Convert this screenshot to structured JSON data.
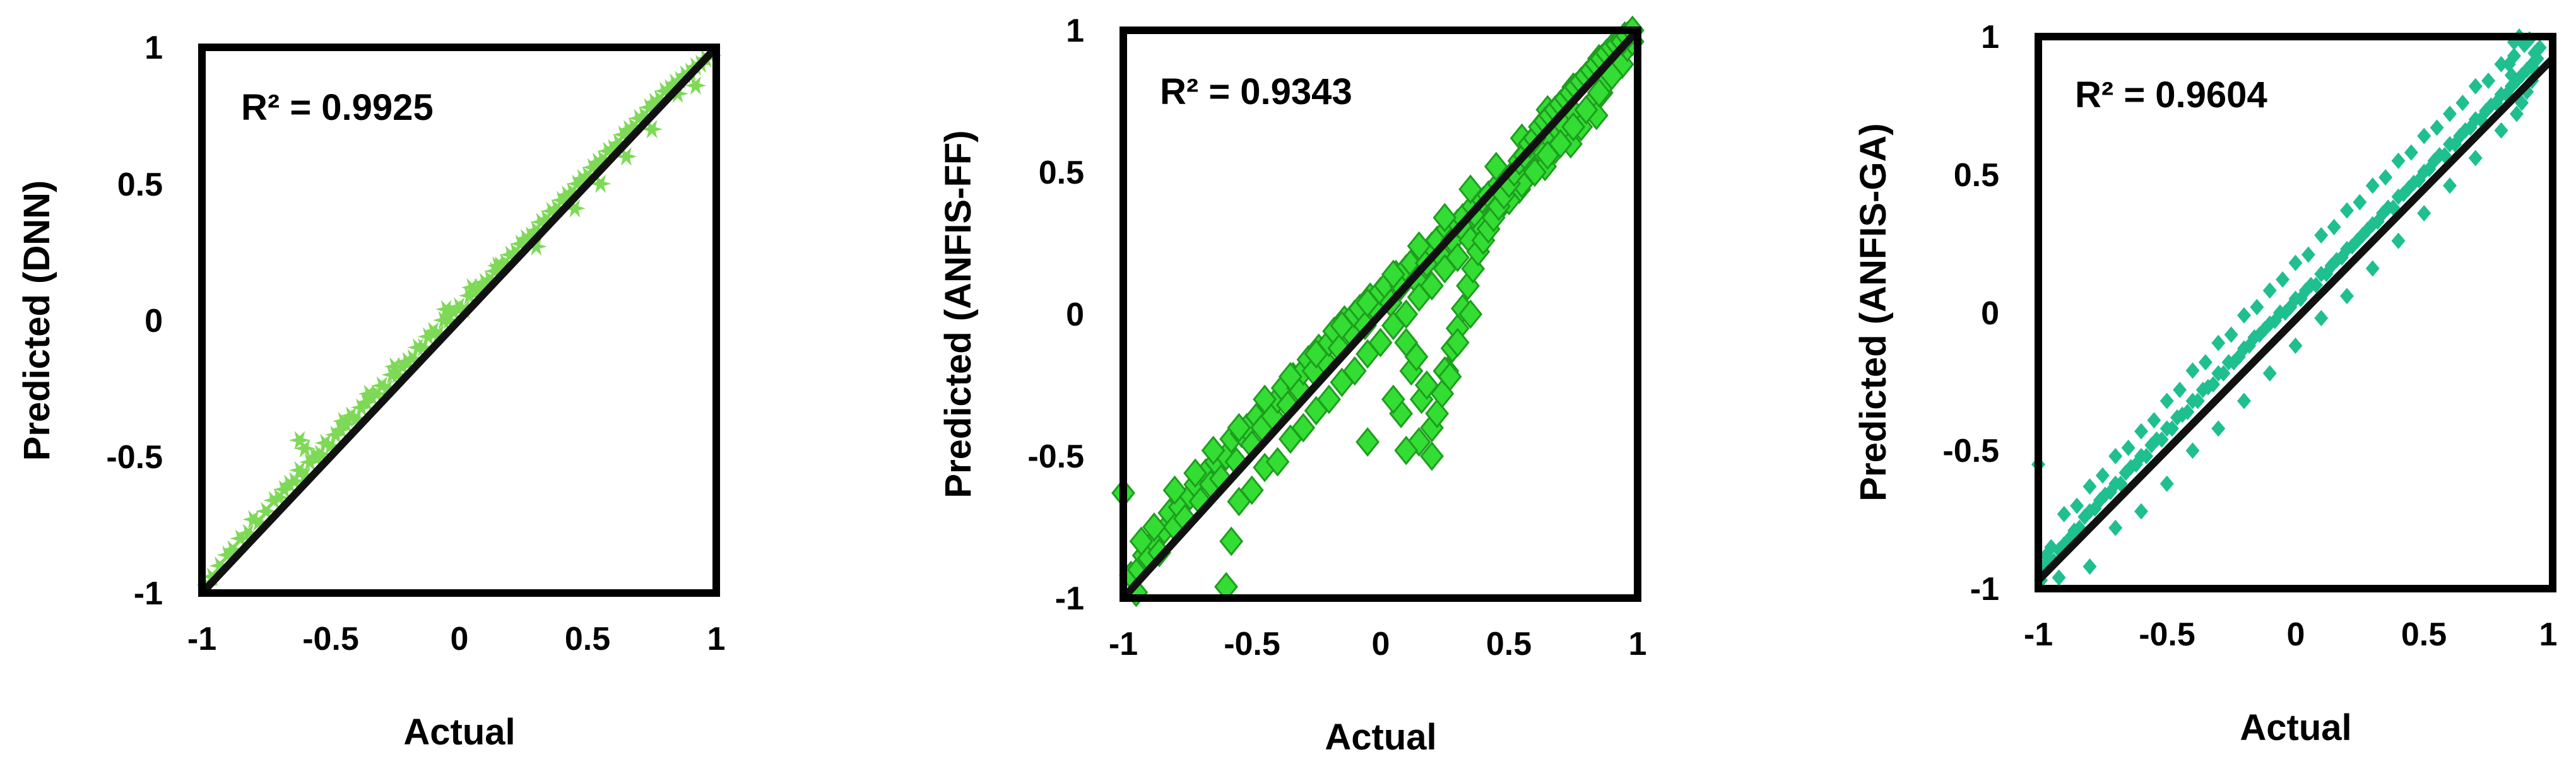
{
  "chart_data": [
    {
      "type": "scatter",
      "xlabel": "Actual",
      "ylabel": "Predicted (DNN)",
      "annotation": "R² = 0.9925",
      "r_squared": 0.9925,
      "xlim": [
        -1,
        1
      ],
      "ylim": [
        -1,
        1
      ],
      "xticks": [
        "-1",
        "-0.5",
        "0",
        "0.5",
        "1"
      ],
      "yticks": [
        "-1",
        "-0.5",
        "0",
        "0.5",
        "1"
      ],
      "grid": false,
      "legend": false,
      "marker": "star",
      "marker_color": "#7ed957",
      "fit_line": {
        "x": [
          -1,
          1
        ],
        "y": [
          -1,
          1
        ],
        "color": "#111111"
      },
      "points": {
        "x": [
          -0.98,
          -0.96,
          -0.93,
          -0.9,
          -0.88,
          -0.85,
          -0.82,
          -0.8,
          -0.78,
          -0.75,
          -0.72,
          -0.7,
          -0.68,
          -0.66,
          -0.64,
          -0.62,
          -0.6,
          -0.58,
          -0.56,
          -0.54,
          -0.52,
          -0.5,
          -0.48,
          -0.46,
          -0.44,
          -0.42,
          -0.4,
          -0.38,
          -0.36,
          -0.34,
          -0.32,
          -0.3,
          -0.28,
          -0.26,
          -0.24,
          -0.22,
          -0.2,
          -0.18,
          -0.16,
          -0.14,
          -0.12,
          -0.1,
          -0.08,
          -0.06,
          -0.04,
          -0.02,
          0.0,
          0.02,
          0.04,
          0.06,
          0.08,
          0.1,
          0.12,
          0.14,
          0.16,
          0.18,
          0.2,
          0.22,
          0.24,
          0.26,
          0.28,
          0.3,
          0.32,
          0.34,
          0.36,
          0.38,
          0.4,
          0.42,
          0.44,
          0.46,
          0.48,
          0.5,
          0.52,
          0.54,
          0.56,
          0.58,
          0.6,
          0.62,
          0.64,
          0.66,
          0.68,
          0.7,
          0.72,
          0.74,
          0.76,
          0.78,
          0.8,
          0.82,
          0.84,
          0.86,
          0.88,
          0.9,
          0.92,
          0.94,
          0.96,
          0.98,
          -0.62,
          -0.6,
          -0.55,
          -0.45,
          -0.35,
          -0.25,
          -0.05,
          0.05,
          0.15,
          0.3,
          0.45,
          0.55,
          0.65,
          0.75,
          0.85,
          0.92
        ],
        "y": [
          -0.97,
          -0.94,
          -0.9,
          -0.86,
          -0.84,
          -0.8,
          -0.78,
          -0.73,
          -0.74,
          -0.7,
          -0.66,
          -0.65,
          -0.62,
          -0.6,
          -0.59,
          -0.55,
          -0.57,
          -0.52,
          -0.5,
          -0.49,
          -0.45,
          -0.46,
          -0.42,
          -0.4,
          -0.38,
          -0.35,
          -0.36,
          -0.32,
          -0.3,
          -0.28,
          -0.27,
          -0.24,
          -0.25,
          -0.2,
          -0.2,
          -0.17,
          -0.15,
          -0.14,
          -0.1,
          -0.1,
          -0.06,
          -0.04,
          -0.05,
          0.0,
          0.0,
          0.03,
          0.05,
          0.04,
          0.09,
          0.1,
          0.12,
          0.14,
          0.15,
          0.18,
          0.2,
          0.21,
          0.24,
          0.25,
          0.28,
          0.3,
          0.31,
          0.33,
          0.36,
          0.37,
          0.4,
          0.41,
          0.44,
          0.46,
          0.47,
          0.5,
          0.52,
          0.53,
          0.56,
          0.58,
          0.59,
          0.62,
          0.63,
          0.65,
          0.68,
          0.7,
          0.71,
          0.74,
          0.75,
          0.78,
          0.8,
          0.81,
          0.84,
          0.85,
          0.87,
          0.88,
          0.9,
          0.91,
          0.93,
          0.94,
          0.96,
          0.97,
          -0.44,
          -0.47,
          -0.5,
          -0.37,
          -0.27,
          -0.17,
          0.04,
          0.12,
          0.2,
          0.27,
          0.41,
          0.5,
          0.6,
          0.7,
          0.83,
          0.86
        ]
      }
    },
    {
      "type": "scatter",
      "xlabel": "Actual",
      "ylabel": "Predicted (ANFIS-FF)",
      "annotation": "R² = 0.9343",
      "r_squared": 0.9343,
      "xlim": [
        -1,
        1
      ],
      "ylim": [
        -1,
        1
      ],
      "xticks": [
        "-1",
        "-0.5",
        "0",
        "0.5",
        "1"
      ],
      "yticks": [
        "-1",
        "-0.5",
        "0",
        "0.5",
        "1"
      ],
      "grid": false,
      "legend": false,
      "marker": "diamond",
      "marker_color": "#33dd33",
      "fit_line": {
        "x": [
          -1,
          1
        ],
        "y": [
          -1,
          1
        ],
        "color": "#111111"
      },
      "points": {
        "x": [
          -1.0,
          -0.97,
          -0.94,
          -0.92,
          -0.9,
          -0.88,
          -0.86,
          -0.84,
          -0.82,
          -0.8,
          -0.78,
          -0.76,
          -0.74,
          -0.72,
          -0.7,
          -0.68,
          -0.66,
          -0.64,
          -0.62,
          -0.6,
          -0.58,
          -0.56,
          -0.54,
          -0.52,
          -0.5,
          -0.48,
          -0.46,
          -0.44,
          -0.42,
          -0.4,
          -0.38,
          -0.36,
          -0.34,
          -0.32,
          -0.3,
          -0.28,
          -0.26,
          -0.24,
          -0.22,
          -0.2,
          -0.18,
          -0.16,
          -0.14,
          -0.12,
          -0.1,
          -0.08,
          -0.06,
          -0.04,
          -0.02,
          0.0,
          0.02,
          0.04,
          0.06,
          0.08,
          0.1,
          0.12,
          0.14,
          0.16,
          0.18,
          0.2,
          0.22,
          0.24,
          0.26,
          0.28,
          0.3,
          0.32,
          0.34,
          0.36,
          0.38,
          0.4,
          0.42,
          0.44,
          0.46,
          0.48,
          0.5,
          0.52,
          0.54,
          0.56,
          0.58,
          0.6,
          0.62,
          0.64,
          0.66,
          0.68,
          0.7,
          0.72,
          0.74,
          0.76,
          0.78,
          0.8,
          0.82,
          0.84,
          0.86,
          0.88,
          0.9,
          0.92,
          0.94,
          0.96,
          0.98,
          -0.6,
          -0.58,
          -0.55,
          -0.5,
          -0.45,
          -0.4,
          -0.35,
          -0.3,
          -0.25,
          -0.2,
          -0.15,
          -0.1,
          -0.05,
          0.0,
          0.05,
          0.1,
          0.15,
          0.2,
          0.25,
          0.3,
          0.35,
          0.4,
          0.45,
          0.5,
          0.55,
          0.6,
          0.65,
          0.7,
          0.75,
          0.8,
          0.85,
          0.9,
          -0.95,
          -0.93,
          -0.88,
          -0.8,
          -0.72,
          -0.65,
          -0.55,
          -0.45,
          -0.35,
          -0.25,
          -0.15,
          -0.05,
          0.05,
          0.15,
          0.25,
          0.35,
          0.45,
          0.55,
          0.65,
          0.75,
          0.85,
          0.95,
          0.1,
          0.12,
          0.14,
          0.16,
          0.18,
          0.2,
          0.22,
          0.24,
          0.26,
          0.28,
          0.3,
          0.32,
          0.34,
          0.36,
          0.38,
          0.4,
          0.42,
          0.44,
          0.46,
          0.48,
          0.5,
          0.52,
          0.54,
          0.56,
          0.58,
          0.6,
          0.62,
          0.64,
          0.66,
          0.68,
          0.7,
          0.72,
          0.74,
          0.76,
          0.78,
          0.8,
          0.82,
          0.84,
          0.86,
          0.88,
          0.9,
          0.92,
          0.94,
          0.96,
          0.98,
          -0.05,
          0.08,
          0.15,
          0.25,
          0.3,
          0.35,
          0.1,
          0.2,
          0.05,
          0.27
        ],
        "y": [
          -0.63,
          -0.92,
          -0.9,
          -0.85,
          -0.86,
          -0.8,
          -0.84,
          -0.76,
          -0.7,
          -0.75,
          -0.68,
          -0.72,
          -0.64,
          -0.6,
          -0.66,
          -0.56,
          -0.6,
          -0.52,
          -0.58,
          -0.5,
          -0.44,
          -0.52,
          -0.42,
          -0.4,
          -0.46,
          -0.36,
          -0.4,
          -0.32,
          -0.36,
          -0.3,
          -0.26,
          -0.32,
          -0.22,
          -0.26,
          -0.2,
          -0.16,
          -0.2,
          -0.12,
          -0.16,
          -0.1,
          -0.06,
          -0.12,
          -0.02,
          -0.06,
          0.0,
          0.02,
          -0.04,
          0.06,
          0.02,
          0.08,
          0.1,
          0.04,
          0.14,
          0.1,
          0.16,
          0.18,
          0.12,
          0.22,
          0.18,
          0.24,
          0.26,
          0.2,
          0.3,
          0.26,
          0.32,
          0.34,
          0.28,
          0.38,
          0.34,
          0.4,
          0.42,
          0.36,
          0.46,
          0.42,
          0.48,
          0.5,
          0.44,
          0.54,
          0.5,
          0.56,
          0.58,
          0.52,
          0.62,
          0.58,
          0.64,
          0.66,
          0.6,
          0.7,
          0.66,
          0.72,
          0.74,
          0.7,
          0.78,
          0.82,
          0.86,
          0.9,
          0.88,
          0.94,
          0.96,
          -0.96,
          -0.8,
          -0.66,
          -0.62,
          -0.54,
          -0.52,
          -0.44,
          -0.4,
          -0.34,
          -0.3,
          -0.24,
          -0.2,
          -0.14,
          -0.1,
          -0.04,
          0.0,
          0.06,
          0.1,
          0.16,
          0.2,
          0.26,
          0.3,
          0.36,
          0.4,
          0.46,
          0.5,
          0.56,
          0.6,
          0.66,
          0.72,
          0.78,
          0.84,
          -0.98,
          -0.8,
          -0.75,
          -0.62,
          -0.56,
          -0.48,
          -0.4,
          -0.3,
          -0.22,
          -0.14,
          -0.04,
          0.04,
          0.14,
          0.24,
          0.34,
          0.44,
          0.52,
          0.62,
          0.72,
          0.8,
          0.9,
          0.98,
          -0.1,
          -0.2,
          -0.15,
          -0.3,
          -0.25,
          -0.4,
          -0.35,
          -0.28,
          -0.2,
          -0.12,
          -0.05,
          0.02,
          0.1,
          0.16,
          0.22,
          0.26,
          0.3,
          0.34,
          0.38,
          0.42,
          0.46,
          0.5,
          0.54,
          0.56,
          0.6,
          0.62,
          0.66,
          0.68,
          0.7,
          0.72,
          0.74,
          0.76,
          0.78,
          0.8,
          0.82,
          0.84,
          0.86,
          0.88,
          0.9,
          0.92,
          0.94,
          0.95,
          0.96,
          0.98,
          1.0,
          -0.45,
          -0.35,
          -0.45,
          -0.2,
          -0.1,
          0.0,
          -0.48,
          -0.5,
          -0.3,
          -0.22
        ]
      }
    },
    {
      "type": "scatter",
      "xlabel": "Actual",
      "ylabel": "Predicted (ANFIS-GA)",
      "annotation": "R² = 0.9604",
      "r_squared": 0.9604,
      "xlim": [
        -1,
        1
      ],
      "ylim": [
        -1,
        1
      ],
      "xticks": [
        "-1",
        "-0.5",
        "0",
        "0.5",
        "1"
      ],
      "yticks": [
        "-1",
        "-0.5",
        "0",
        "0.5",
        "1"
      ],
      "grid": false,
      "legend": false,
      "marker": "small-diamond",
      "marker_color": "#1fbf8f",
      "fit_line": {
        "x": [
          -1,
          1
        ],
        "y": [
          -0.97,
          0.92
        ],
        "color": "#111111"
      },
      "points": {
        "x": [
          -1.0,
          -0.98,
          -0.96,
          -0.94,
          -0.92,
          -0.9,
          -0.88,
          -0.86,
          -0.84,
          -0.82,
          -0.8,
          -0.78,
          -0.76,
          -0.74,
          -0.72,
          -0.7,
          -0.68,
          -0.66,
          -0.64,
          -0.62,
          -0.6,
          -0.58,
          -0.56,
          -0.54,
          -0.52,
          -0.5,
          -0.48,
          -0.46,
          -0.44,
          -0.42,
          -0.4,
          -0.38,
          -0.36,
          -0.34,
          -0.32,
          -0.3,
          -0.28,
          -0.26,
          -0.24,
          -0.22,
          -0.2,
          -0.18,
          -0.16,
          -0.14,
          -0.12,
          -0.1,
          -0.08,
          -0.06,
          -0.04,
          -0.02,
          0.0,
          0.02,
          0.04,
          0.06,
          0.08,
          0.1,
          0.12,
          0.14,
          0.16,
          0.18,
          0.2,
          0.22,
          0.24,
          0.26,
          0.28,
          0.3,
          0.32,
          0.34,
          0.36,
          0.38,
          0.4,
          0.42,
          0.44,
          0.46,
          0.48,
          0.5,
          0.52,
          0.54,
          0.56,
          0.58,
          0.6,
          0.62,
          0.64,
          0.66,
          0.68,
          0.7,
          0.72,
          0.74,
          0.76,
          0.78,
          0.8,
          0.82,
          0.84,
          0.86,
          0.88,
          0.9,
          0.92,
          0.94,
          -0.99,
          -0.95,
          -0.9,
          -0.85,
          -0.8,
          -0.75,
          -0.7,
          -0.65,
          -0.6,
          -0.55,
          -0.5,
          -0.45,
          -0.4,
          -0.35,
          -0.3,
          -0.25,
          -0.2,
          -0.15,
          -0.1,
          -0.05,
          0.0,
          0.05,
          0.1,
          0.15,
          0.2,
          0.25,
          0.3,
          0.35,
          0.4,
          0.45,
          0.5,
          0.55,
          0.6,
          0.65,
          0.7,
          0.75,
          0.8,
          0.85,
          0.9,
          -0.97,
          -0.92,
          -0.8,
          -0.7,
          -0.6,
          -0.5,
          -0.4,
          -0.3,
          -0.2,
          -0.1,
          0.0,
          0.1,
          0.2,
          0.3,
          0.4,
          0.5,
          0.6,
          0.7,
          0.8,
          0.86,
          0.88,
          0.9,
          0.92,
          0.93,
          0.94,
          0.95,
          0.85,
          0.87,
          0.89,
          0.91,
          0.93,
          0.83,
          0.84
        ],
        "y": [
          -0.55,
          -0.93,
          -0.9,
          -0.9,
          -0.86,
          -0.84,
          -0.82,
          -0.79,
          -0.78,
          -0.74,
          -0.72,
          -0.71,
          -0.68,
          -0.66,
          -0.65,
          -0.62,
          -0.62,
          -0.58,
          -0.56,
          -0.55,
          -0.52,
          -0.52,
          -0.48,
          -0.46,
          -0.46,
          -0.42,
          -0.42,
          -0.38,
          -0.37,
          -0.36,
          -0.32,
          -0.32,
          -0.28,
          -0.27,
          -0.26,
          -0.22,
          -0.22,
          -0.18,
          -0.18,
          -0.16,
          -0.13,
          -0.12,
          -0.09,
          -0.08,
          -0.06,
          -0.04,
          -0.03,
          0.0,
          0.0,
          0.02,
          0.05,
          0.05,
          0.08,
          0.1,
          0.1,
          0.14,
          0.14,
          0.17,
          0.19,
          0.2,
          0.23,
          0.24,
          0.26,
          0.28,
          0.3,
          0.32,
          0.33,
          0.36,
          0.38,
          0.38,
          0.42,
          0.43,
          0.45,
          0.47,
          0.48,
          0.51,
          0.52,
          0.55,
          0.57,
          0.57,
          0.61,
          0.61,
          0.64,
          0.66,
          0.67,
          0.7,
          0.7,
          0.73,
          0.75,
          0.76,
          0.79,
          0.79,
          0.82,
          0.84,
          0.86,
          0.88,
          0.9,
          0.95,
          -0.97,
          -0.85,
          -0.73,
          -0.7,
          -0.63,
          -0.59,
          -0.52,
          -0.49,
          -0.43,
          -0.39,
          -0.32,
          -0.28,
          -0.21,
          -0.18,
          -0.11,
          -0.08,
          -0.01,
          0.02,
          0.08,
          0.12,
          0.18,
          0.21,
          0.28,
          0.31,
          0.37,
          0.4,
          0.46,
          0.49,
          0.55,
          0.58,
          0.64,
          0.67,
          0.72,
          0.76,
          0.82,
          0.84,
          0.9,
          0.93,
          0.98,
          -0.88,
          -0.96,
          -0.92,
          -0.78,
          -0.72,
          -0.62,
          -0.5,
          -0.42,
          -0.32,
          -0.22,
          -0.12,
          -0.02,
          0.06,
          0.16,
          0.26,
          0.36,
          0.46,
          0.56,
          0.66,
          0.72,
          0.76,
          0.8,
          0.84,
          0.88,
          0.92,
          0.96,
          0.98,
          1.0,
          0.97,
          0.99,
          0.94,
          0.9,
          0.86
        ]
      }
    }
  ]
}
